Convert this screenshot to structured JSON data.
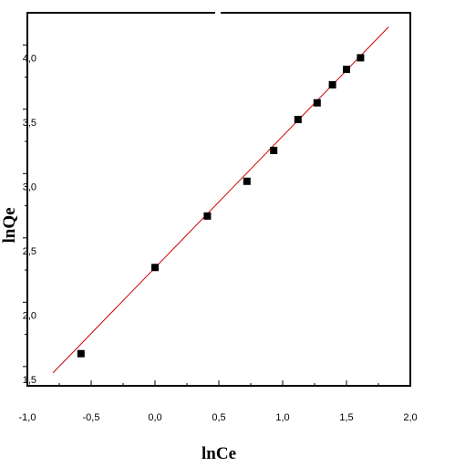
{
  "chart_data": {
    "type": "scatter",
    "title": "",
    "xlabel": "lnCe",
    "ylabel": "lnQe",
    "xlim": [
      -1.0,
      2.0
    ],
    "ylim": [
      1.35,
      4.25
    ],
    "xticks": [
      {
        "value": -1.0,
        "label": "-1,0"
      },
      {
        "value": -0.5,
        "label": "-0,5"
      },
      {
        "value": 0.0,
        "label": "0,0"
      },
      {
        "value": 0.5,
        "label": "0,5"
      },
      {
        "value": 1.0,
        "label": "1,0"
      },
      {
        "value": 1.5,
        "label": "1,5"
      },
      {
        "value": 2.0,
        "label": "2,0"
      }
    ],
    "yticks": [
      {
        "value": 1.5,
        "label": "1,5"
      },
      {
        "value": 2.0,
        "label": "2,0"
      },
      {
        "value": 2.5,
        "label": "2,5"
      },
      {
        "value": 3.0,
        "label": "3,0"
      },
      {
        "value": 3.5,
        "label": "3,5"
      },
      {
        "value": 4.0,
        "label": "4,0"
      }
    ],
    "grid": false,
    "legend": "none",
    "series": [
      {
        "x": [
          -0.58,
          0.0,
          0.41,
          0.72,
          0.93,
          1.12,
          1.27,
          1.39,
          1.5,
          1.61
        ],
        "y": [
          1.6,
          2.27,
          2.67,
          2.94,
          3.18,
          3.42,
          3.55,
          3.69,
          3.81,
          3.9
        ],
        "marker": "square",
        "color": "#000000"
      }
    ],
    "fit_line": {
      "x": [
        -0.8,
        1.83
      ],
      "y": [
        1.45,
        4.14
      ],
      "color": "#cc0000"
    }
  }
}
